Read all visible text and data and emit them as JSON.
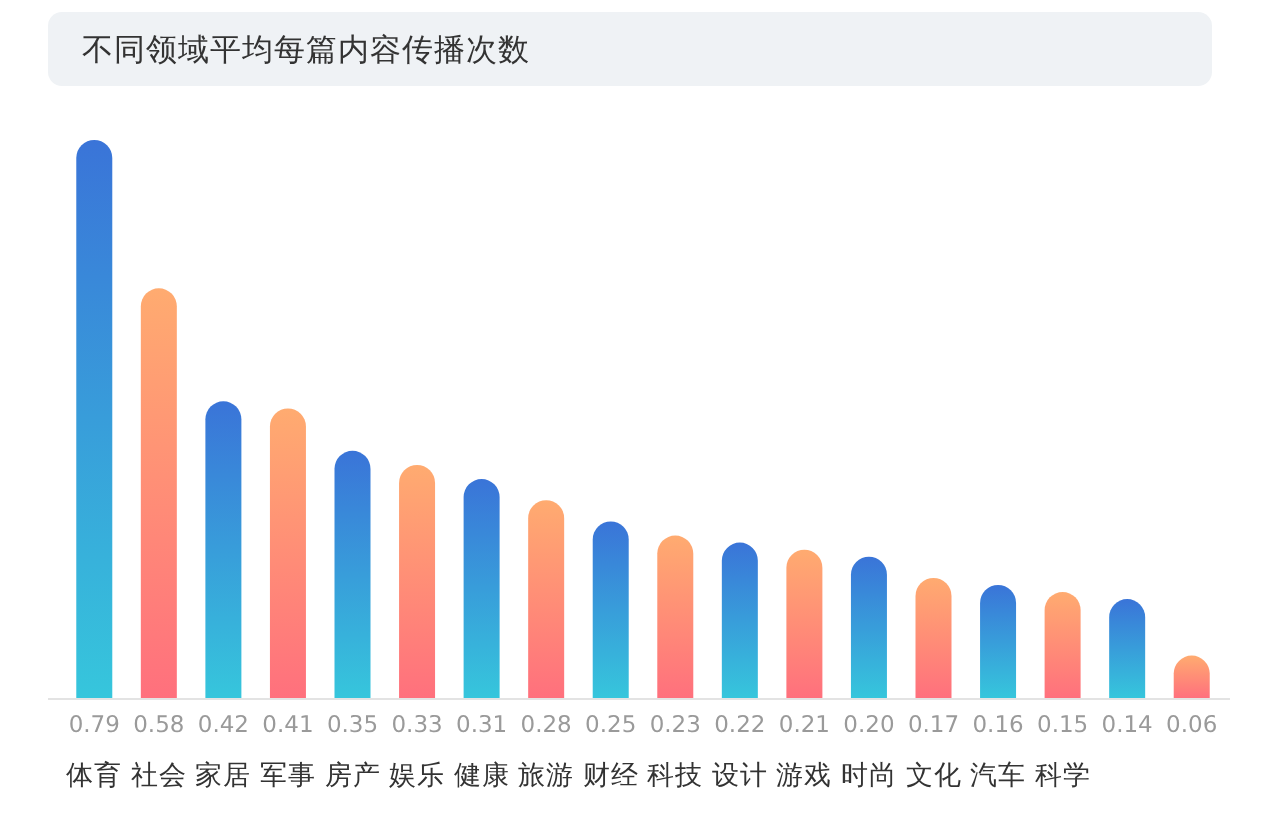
{
  "chart_data": {
    "type": "bar",
    "title": "不同领域平均每篇内容传播次数",
    "categories": [
      "体育",
      "社会",
      "家居",
      "军事",
      "房产",
      "娱乐",
      "健康",
      "旅游",
      "财经",
      "科技",
      "设计",
      "游戏",
      "时尚",
      "文化",
      "汽车",
      "科学",
      null,
      null
    ],
    "values": [
      0.79,
      0.58,
      0.42,
      0.41,
      0.35,
      0.33,
      0.31,
      0.28,
      0.25,
      0.23,
      0.22,
      0.21,
      0.2,
      0.17,
      0.16,
      0.15,
      0.14,
      0.06
    ],
    "value_labels": [
      "0.79",
      "0.58",
      "0.42",
      "0.41",
      "0.35",
      "0.33",
      "0.31",
      "0.28",
      "0.25",
      "0.23",
      "0.22",
      "0.21",
      "0.20",
      "0.17",
      "0.16",
      "0.15",
      "0.14",
      "0.06"
    ],
    "colors": [
      "#3a74d8",
      "#ffab70",
      "#3a74d8",
      "#ffab70",
      "#3a74d8",
      "#ffab70",
      "#3a74d8",
      "#ffab70",
      "#3a74d8",
      "#ffab70",
      "#3a74d8",
      "#ffab70",
      "#3a74d8",
      "#ffab70",
      "#3a74d8",
      "#ffab70",
      "#3a74d8",
      "#ffab70"
    ]
  }
}
